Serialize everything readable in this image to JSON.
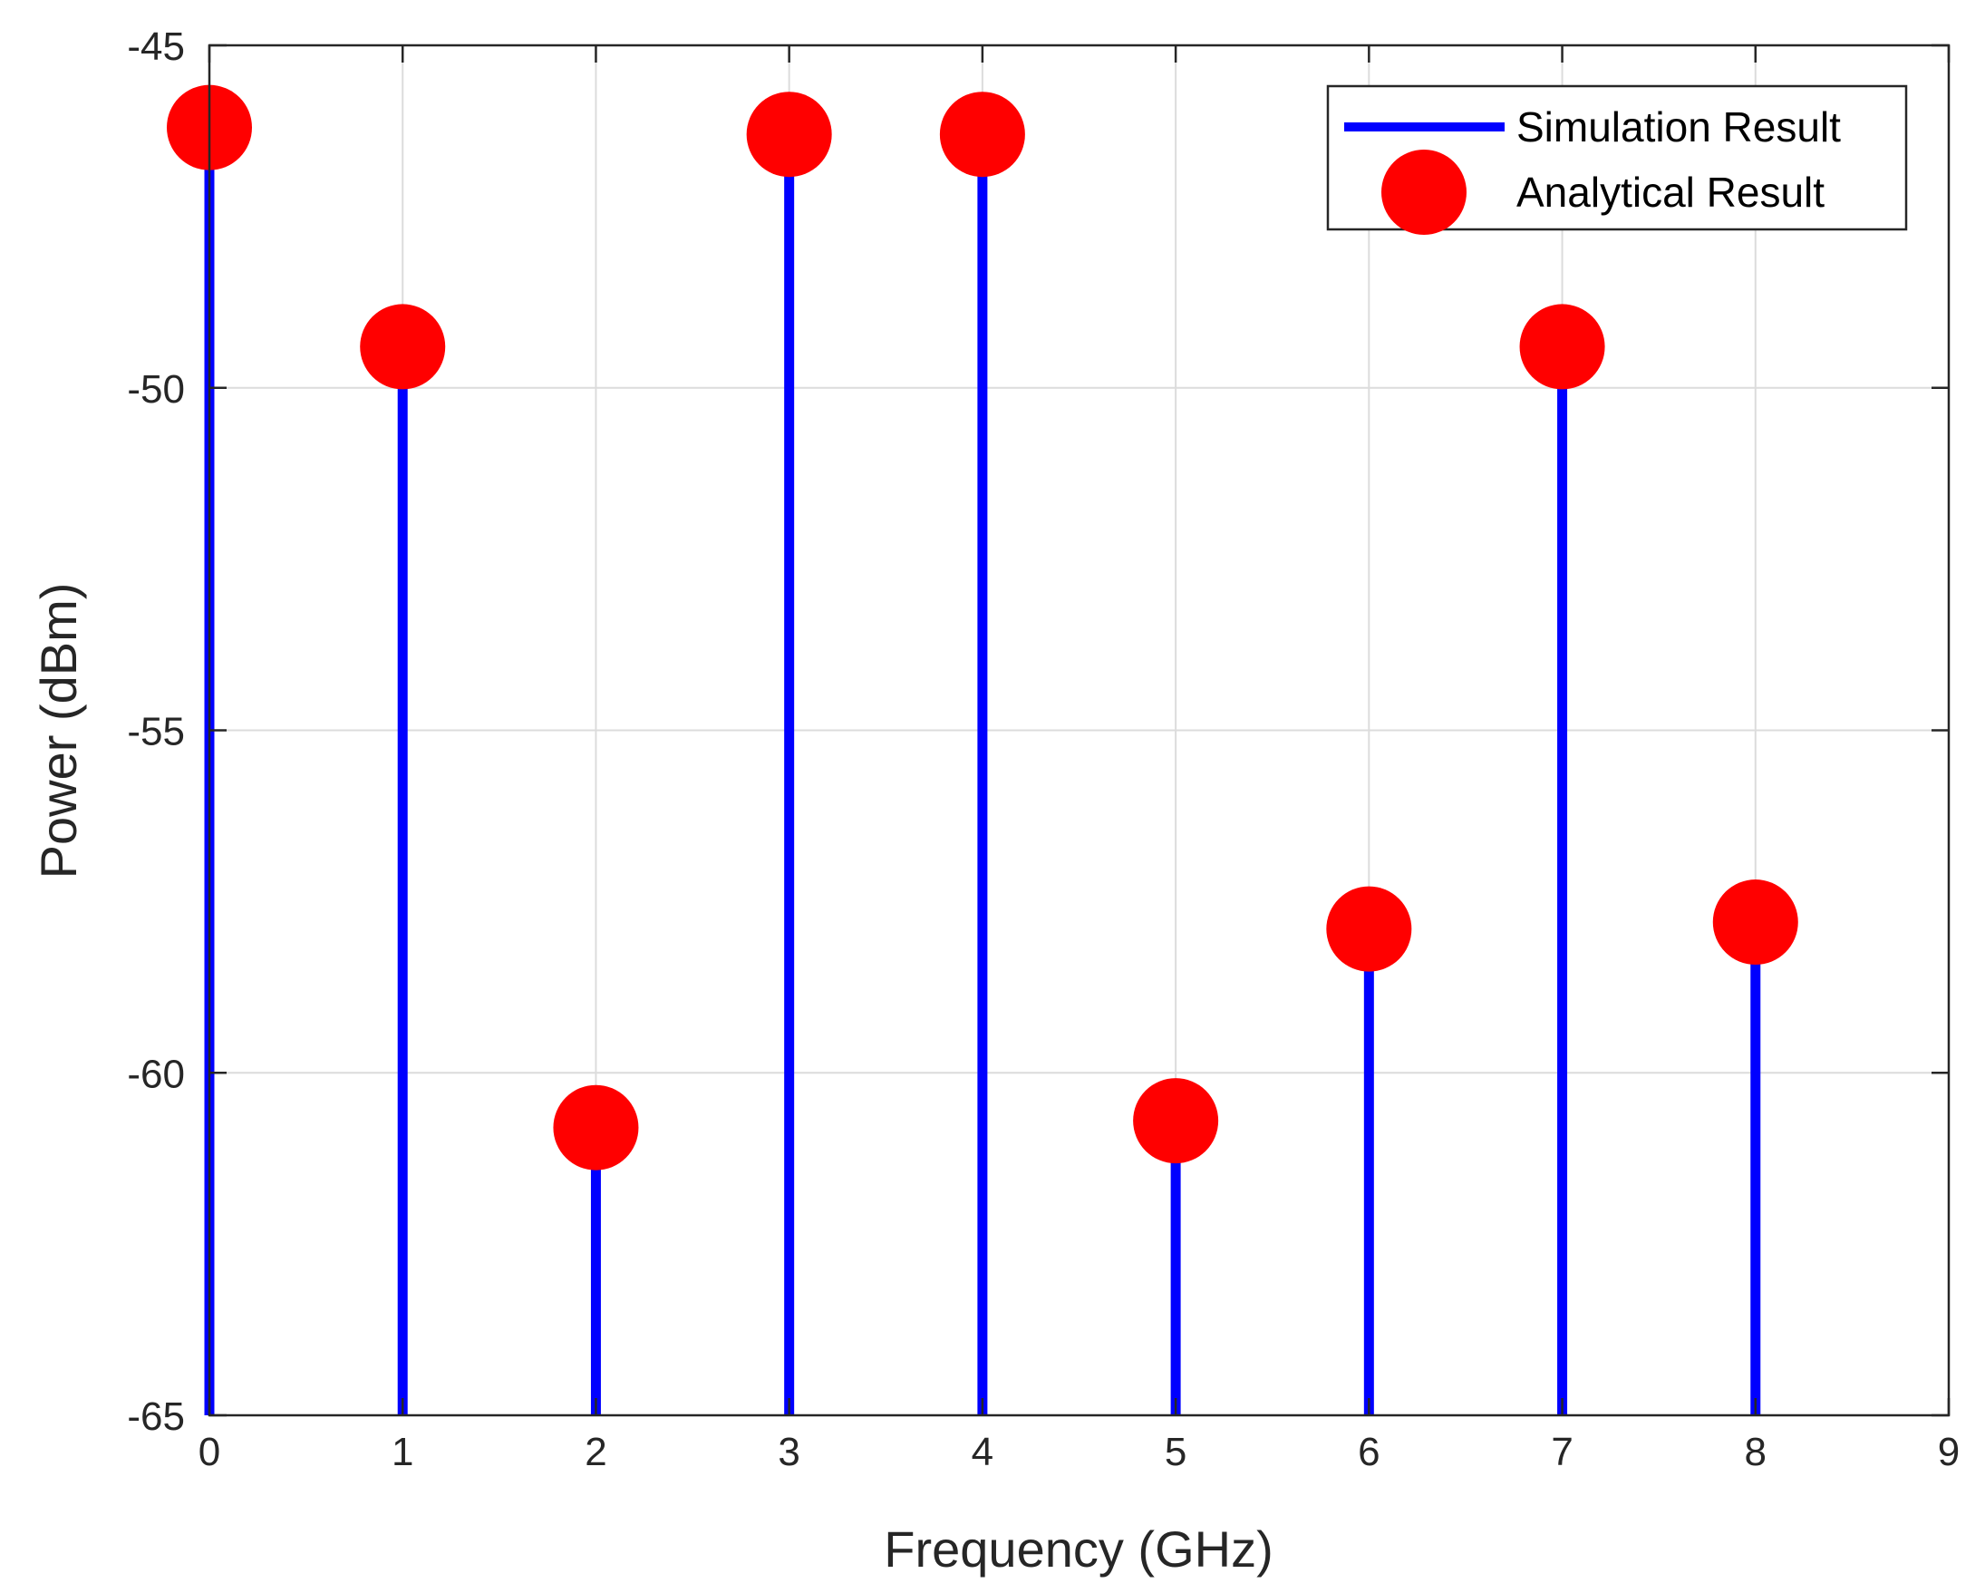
{
  "chart_data": {
    "type": "stem",
    "title": "",
    "xlabel": "Frequency (GHz)",
    "ylabel": "Power (dBm)",
    "xlim": [
      0,
      9
    ],
    "ylim": [
      -65,
      -45
    ],
    "xticks": [
      0,
      1,
      2,
      3,
      4,
      5,
      6,
      7,
      8,
      9
    ],
    "yticks": [
      -65,
      -60,
      -55,
      -50,
      -45
    ],
    "xtick_labels": [
      "0",
      "1",
      "2",
      "3",
      "4",
      "5",
      "6",
      "7",
      "8",
      "9"
    ],
    "ytick_labels": [
      "-65",
      "-60",
      "-55",
      "-50",
      "-45"
    ],
    "grid": true,
    "legend_position": "top-right",
    "series": [
      {
        "name": "Simulation Result",
        "style": "stem-line",
        "color": "#0000ff",
        "x": [
          0,
          1,
          2,
          3,
          4,
          5,
          6,
          7,
          8
        ],
        "values": [
          -46.2,
          -49.4,
          -60.8,
          -46.3,
          -46.3,
          -60.7,
          -57.9,
          -49.4,
          -57.8
        ]
      },
      {
        "name": "Analytical Result",
        "style": "marker",
        "color": "#ff0000",
        "x": [
          0,
          1,
          2,
          3,
          4,
          5,
          6,
          7,
          8
        ],
        "values": [
          -46.2,
          -49.4,
          -60.8,
          -46.3,
          -46.3,
          -60.7,
          -57.9,
          -49.4,
          -57.8
        ]
      }
    ]
  }
}
